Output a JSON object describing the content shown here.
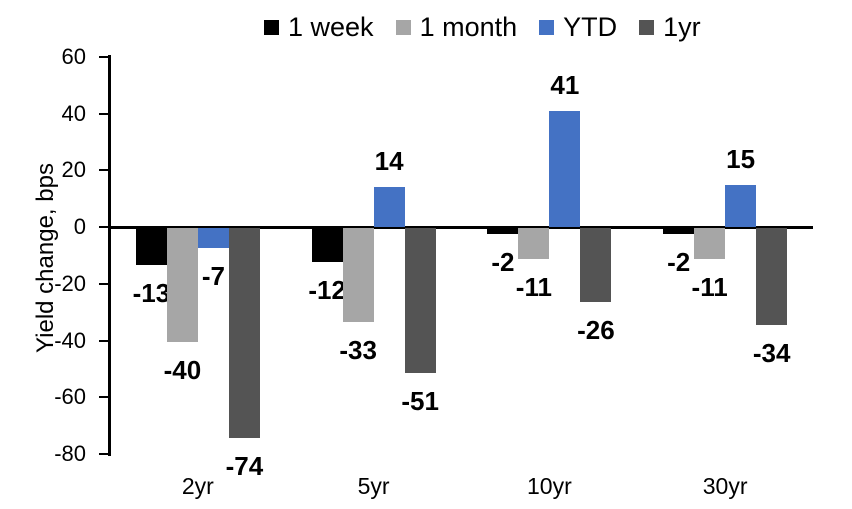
{
  "chart_data": {
    "type": "bar",
    "title": "",
    "ylabel": "Yield change, bps",
    "categories": [
      "2yr",
      "5yr",
      "10yr",
      "30yr"
    ],
    "series": [
      {
        "name": "1 week",
        "color": "#000000",
        "values": [
          -13,
          -12,
          -2,
          -2
        ]
      },
      {
        "name": "1 month",
        "color": "#A6A6A6",
        "values": [
          -40,
          -33,
          -11,
          -11
        ]
      },
      {
        "name": "YTD",
        "color": "#4472C4",
        "values": [
          -7,
          14,
          41,
          15
        ]
      },
      {
        "name": "1yr",
        "color": "#545454",
        "values": [
          -74,
          -51,
          -26,
          -34
        ]
      }
    ],
    "ylim": [
      -80,
      60
    ],
    "yticks": [
      60,
      40,
      20,
      0,
      -20,
      -40,
      -60,
      -80
    ],
    "grid": false,
    "legend_position": "top",
    "data_labels": true,
    "axis_color": "#000000",
    "background_color": "#FFFFFF"
  }
}
